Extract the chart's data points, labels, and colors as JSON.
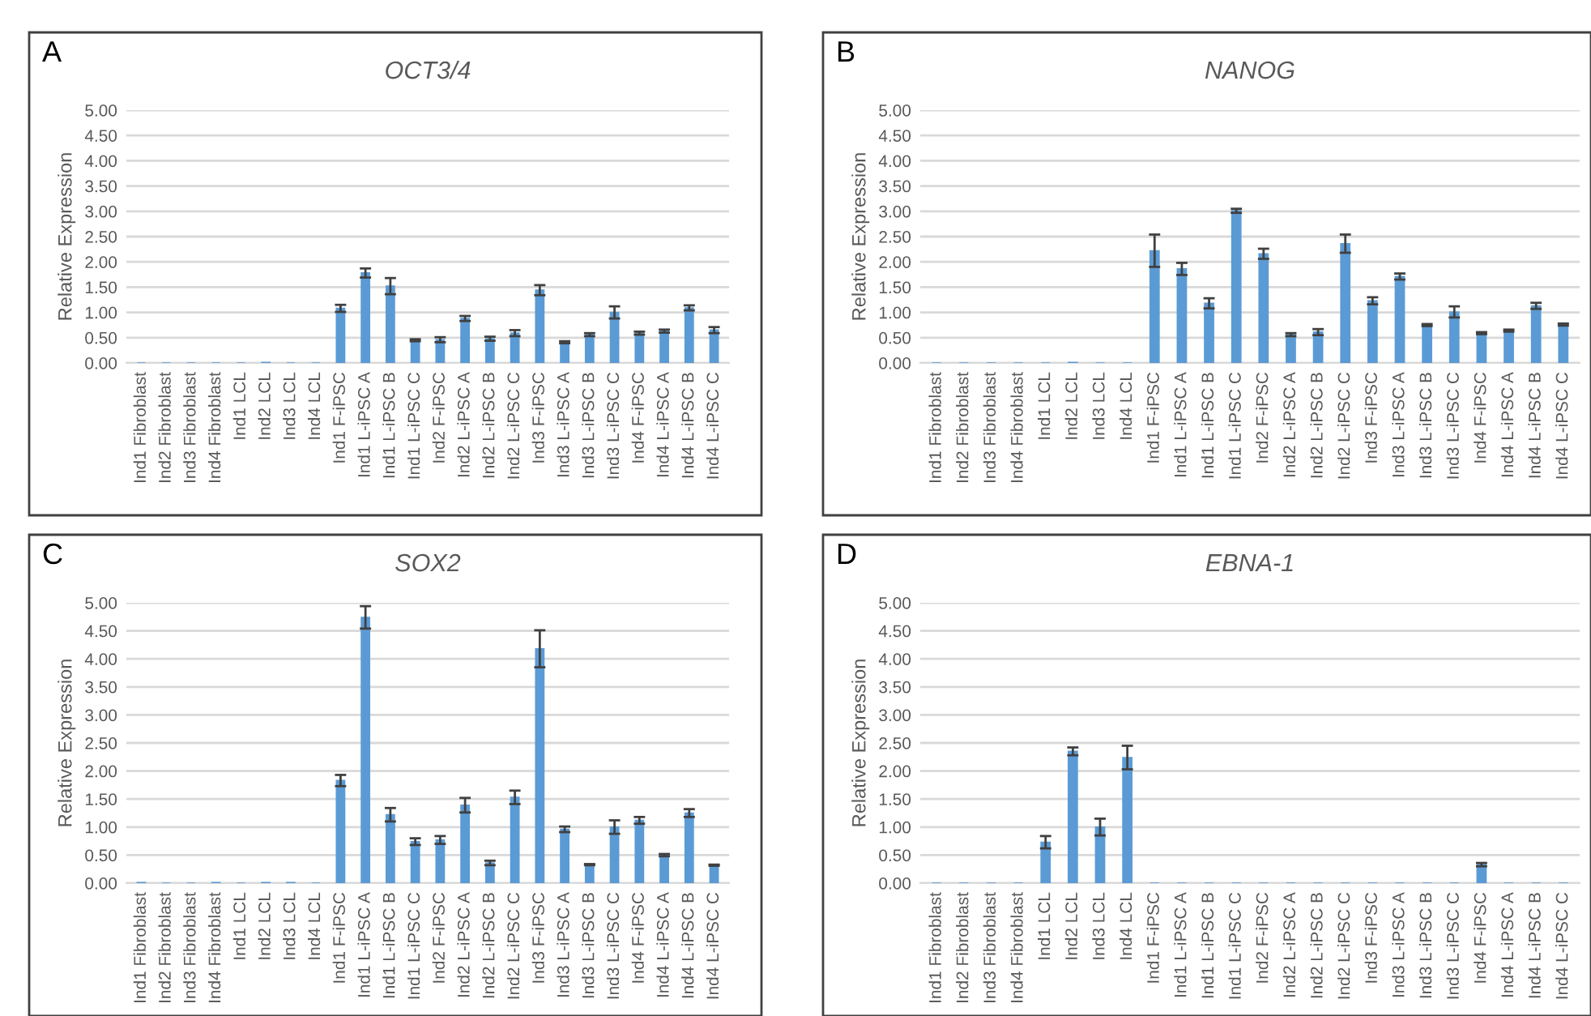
{
  "chart_data": [
    {
      "type": "bar",
      "title": "OCT3/4",
      "ylabel": "Relative Expression",
      "annotations": [
        "A"
      ],
      "color": "#5b9bd5",
      "grid": "y",
      "categories": [
        "Ind1 Fibroblast",
        "Ind2 Fibroblast",
        "Ind3 Fibroblast",
        "Ind4 Fibroblast",
        "Ind1 LCL",
        "Ind2 LCL",
        "Ind3 LCL",
        "Ind4 LCL",
        "Ind1 F-iPSC",
        "Ind1 L-iPSC A",
        "Ind1 L-iPSC B",
        "Ind1 L-iPSC C",
        "Ind2 F-iPSC",
        "Ind2 L-iPSC A",
        "Ind2 L-iPSC B",
        "Ind2 L-iPSC C",
        "Ind3 F-iPSC",
        "Ind3 L-iPSC A",
        "Ind3 L-iPSC B",
        "Ind3 L-iPSC C",
        "Ind4 F-iPSC",
        "Ind4 L-iPSC A",
        "Ind4 L-iPSC B",
        "Ind4 L-iPSC C"
      ],
      "values": [
        0,
        0,
        0,
        0,
        0,
        0.01,
        0,
        0,
        1.08,
        1.78,
        1.52,
        0.45,
        0.46,
        0.88,
        0.48,
        0.59,
        1.44,
        0.41,
        0.56,
        1.0,
        0.59,
        0.63,
        1.09,
        0.65
      ],
      "errors": [
        null,
        null,
        null,
        null,
        null,
        null,
        null,
        null,
        0.07,
        0.09,
        0.16,
        0.02,
        0.05,
        0.05,
        0.04,
        0.06,
        0.1,
        0.02,
        0.03,
        0.12,
        0.03,
        0.03,
        0.05,
        0.06
      ],
      "ylim": [
        0,
        5
      ],
      "yticks": [
        {
          "value": 0,
          "label": "0.00"
        },
        {
          "value": 0.5,
          "label": "0.50"
        },
        {
          "value": 1,
          "label": "1.00"
        },
        {
          "value": 1.5,
          "label": "1.50"
        },
        {
          "value": 2,
          "label": "2.00"
        },
        {
          "value": 2.5,
          "label": "2.50"
        },
        {
          "value": 3,
          "label": "3.00"
        },
        {
          "value": 3.5,
          "label": "3.50"
        },
        {
          "value": 4,
          "label": "4.00"
        },
        {
          "value": 4.5,
          "label": "4.50"
        },
        {
          "value": 5,
          "label": "5.00"
        }
      ]
    },
    {
      "type": "bar",
      "title": "NANOG",
      "ylabel": "Relative Expression",
      "annotations": [
        "B"
      ],
      "color": "#5b9bd5",
      "grid": "y",
      "categories": [
        "Ind1 Fibroblast",
        "Ind2 Fibroblast",
        "Ind3 Fibroblast",
        "Ind4 Fibroblast",
        "Ind1 LCL",
        "Ind2 LCL",
        "Ind3 LCL",
        "Ind4 LCL",
        "Ind1 F-iPSC",
        "Ind1 L-iPSC A",
        "Ind1 L-iPSC B",
        "Ind1 L-iPSC C",
        "Ind2 F-iPSC",
        "Ind2 L-iPSC A",
        "Ind2 L-iPSC B",
        "Ind2 L-iPSC C",
        "Ind3 F-iPSC",
        "Ind3 L-iPSC A",
        "Ind3 L-iPSC B",
        "Ind3 L-iPSC C",
        "Ind4 F-iPSC",
        "Ind4 L-iPSC A",
        "Ind4 L-iPSC B",
        "Ind4 L-iPSC C"
      ],
      "values": [
        0,
        0,
        0,
        0,
        0,
        0.01,
        0,
        0,
        2.22,
        1.86,
        1.18,
        3.01,
        2.16,
        0.56,
        0.61,
        2.36,
        1.23,
        1.71,
        0.75,
        1.01,
        0.59,
        0.64,
        1.13,
        0.76
      ],
      "errors": [
        null,
        null,
        null,
        null,
        null,
        null,
        null,
        null,
        0.32,
        0.12,
        0.1,
        0.04,
        0.1,
        0.03,
        0.06,
        0.18,
        0.07,
        0.06,
        0.02,
        0.11,
        0.02,
        0.02,
        0.06,
        0.02
      ],
      "ylim": [
        0,
        5
      ],
      "yticks": [
        {
          "value": 0,
          "label": "0.00"
        },
        {
          "value": 0.5,
          "label": "0.50"
        },
        {
          "value": 1,
          "label": "1.00"
        },
        {
          "value": 1.5,
          "label": "1.50"
        },
        {
          "value": 2,
          "label": "2.00"
        },
        {
          "value": 2.5,
          "label": "2.50"
        },
        {
          "value": 3,
          "label": "3.00"
        },
        {
          "value": 3.5,
          "label": "3.50"
        },
        {
          "value": 4,
          "label": "4.00"
        },
        {
          "value": 4.5,
          "label": "4.50"
        },
        {
          "value": 5,
          "label": "5.00"
        }
      ]
    },
    {
      "type": "bar",
      "title": "SOX2",
      "ylabel": "Relative Expression",
      "annotations": [
        "C"
      ],
      "color": "#5b9bd5",
      "grid": "y",
      "categories": [
        "Ind1 Fibroblast",
        "Ind2 Fibroblast",
        "Ind3 Fibroblast",
        "Ind4 Fibroblast",
        "Ind1 LCL",
        "Ind2 LCL",
        "Ind3 LCL",
        "Ind4 LCL",
        "Ind1 F-iPSC",
        "Ind1 L-iPSC A",
        "Ind1 L-iPSC B",
        "Ind1 L-iPSC C",
        "Ind2 F-iPSC",
        "Ind2 L-iPSC A",
        "Ind2 L-iPSC B",
        "Ind2 L-iPSC C",
        "Ind3 F-iPSC",
        "Ind3 L-iPSC A",
        "Ind3 L-iPSC B",
        "Ind3 L-iPSC C",
        "Ind4 F-iPSC",
        "Ind4 L-iPSC A",
        "Ind4 L-iPSC B",
        "Ind4 L-iPSC C"
      ],
      "values": [
        0.01,
        0,
        0,
        0.01,
        0,
        0.01,
        0.01,
        0,
        1.83,
        4.74,
        1.22,
        0.74,
        0.77,
        1.39,
        0.36,
        1.53,
        4.18,
        0.96,
        0.33,
        1.0,
        1.12,
        0.5,
        1.25,
        0.32
      ],
      "errors": [
        null,
        null,
        null,
        null,
        null,
        null,
        null,
        null,
        0.1,
        0.2,
        0.12,
        0.06,
        0.07,
        0.13,
        0.04,
        0.12,
        0.33,
        0.05,
        0.01,
        0.12,
        0.06,
        0.02,
        0.07,
        0.01
      ],
      "ylim": [
        0,
        5
      ],
      "yticks": [
        {
          "value": 0,
          "label": "0.00"
        },
        {
          "value": 0.5,
          "label": "0.50"
        },
        {
          "value": 1,
          "label": "1.00"
        },
        {
          "value": 1.5,
          "label": "1.50"
        },
        {
          "value": 2,
          "label": "2.00"
        },
        {
          "value": 2.5,
          "label": "2.50"
        },
        {
          "value": 3,
          "label": "3.00"
        },
        {
          "value": 3.5,
          "label": "3.50"
        },
        {
          "value": 4,
          "label": "4.00"
        },
        {
          "value": 4.5,
          "label": "4.50"
        },
        {
          "value": 5,
          "label": "5.00"
        }
      ]
    },
    {
      "type": "bar",
      "title": "EBNA-1",
      "ylabel": "Relative Expression",
      "annotations": [
        "D"
      ],
      "color": "#5b9bd5",
      "grid": "y",
      "categories": [
        "Ind1 Fibroblast",
        "Ind2 Fibroblast",
        "Ind3 Fibroblast",
        "Ind4 Fibroblast",
        "Ind1 LCL",
        "Ind2 LCL",
        "Ind3 LCL",
        "Ind4 LCL",
        "Ind1 F-iPSC",
        "Ind1 L-iPSC A",
        "Ind1 L-iPSC B",
        "Ind1 L-iPSC C",
        "Ind2 F-iPSC",
        "Ind2 L-iPSC A",
        "Ind2 L-iPSC B",
        "Ind2 L-iPSC C",
        "Ind3 F-iPSC",
        "Ind3 L-iPSC A",
        "Ind3 L-iPSC B",
        "Ind3 L-iPSC C",
        "Ind4 F-iPSC",
        "Ind4 L-iPSC A",
        "Ind4 L-iPSC B",
        "Ind4 L-iPSC C"
      ],
      "values": [
        0,
        0,
        0,
        0,
        0.73,
        2.35,
        1.0,
        2.24,
        0,
        0,
        0,
        0,
        0,
        0,
        0,
        0,
        0,
        0,
        0,
        0,
        0.33,
        0,
        0,
        0
      ],
      "errors": [
        null,
        null,
        null,
        null,
        0.11,
        0.07,
        0.15,
        0.21,
        null,
        null,
        null,
        null,
        null,
        null,
        null,
        null,
        null,
        null,
        null,
        null,
        0.03,
        null,
        null,
        null
      ],
      "ylim": [
        0,
        5
      ],
      "yticks": [
        {
          "value": 0,
          "label": "0.00"
        },
        {
          "value": 0.5,
          "label": "0.50"
        },
        {
          "value": 1,
          "label": "1.00"
        },
        {
          "value": 1.5,
          "label": "1.50"
        },
        {
          "value": 2,
          "label": "2.00"
        },
        {
          "value": 2.5,
          "label": "2.50"
        },
        {
          "value": 3,
          "label": "3.00"
        },
        {
          "value": 3.5,
          "label": "3.50"
        },
        {
          "value": 4,
          "label": "4.00"
        },
        {
          "value": 4.5,
          "label": "4.50"
        },
        {
          "value": 5,
          "label": "5.00"
        }
      ]
    }
  ]
}
